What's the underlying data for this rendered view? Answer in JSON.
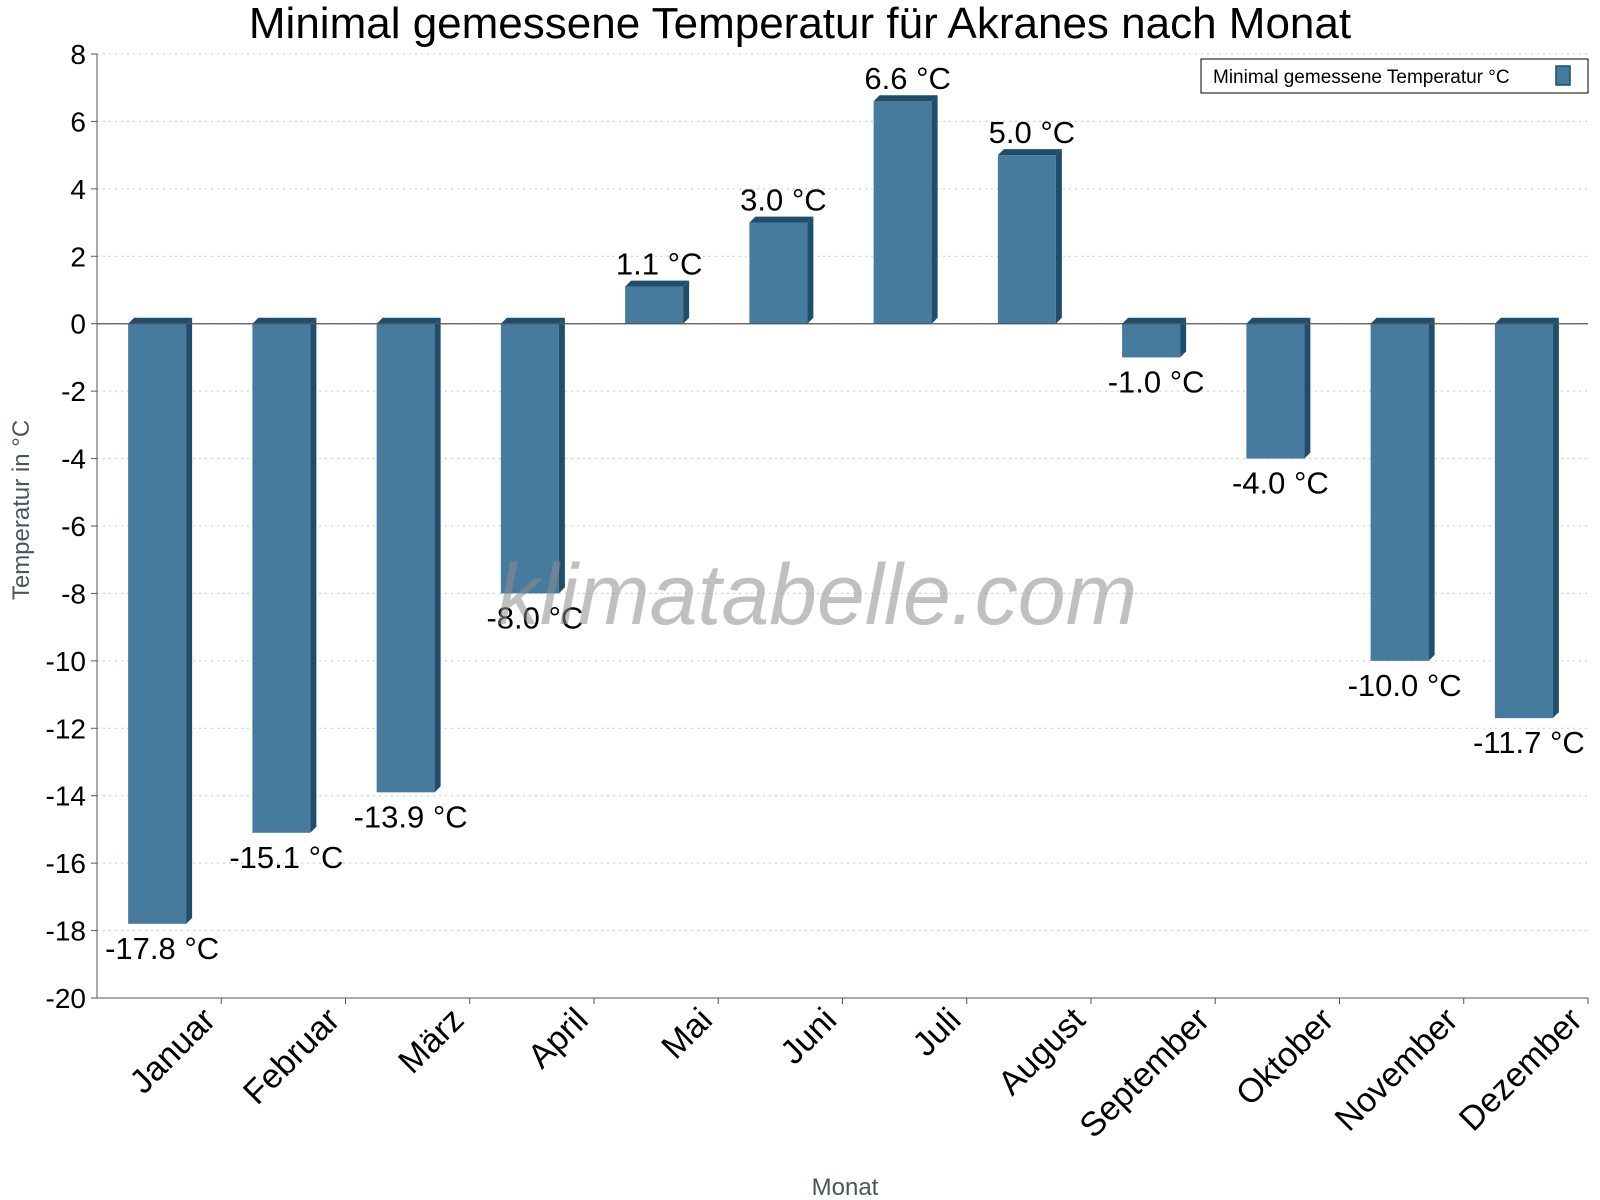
{
  "chart_data": {
    "type": "bar",
    "title": "Minimal gemessene Temperatur für Akranes nach Monat",
    "xlabel": "Monat",
    "ylabel": "Temperatur in °C",
    "ylim": [
      -20,
      8
    ],
    "yticks": [
      8,
      6,
      4,
      2,
      0,
      -2,
      -4,
      -6,
      -8,
      -10,
      -12,
      -14,
      -16,
      -18,
      -20
    ],
    "grid": true,
    "legend_position": "top-right",
    "categories": [
      "Januar",
      "Februar",
      "März",
      "April",
      "Mai",
      "Juni",
      "Juli",
      "August",
      "September",
      "Oktober",
      "November",
      "Dezember"
    ],
    "series": [
      {
        "name": "Minimal gemessene Temperatur °C",
        "color": "#467b9e",
        "values": [
          -17.8,
          -15.1,
          -13.9,
          -8.0,
          1.1,
          3.0,
          6.6,
          5.0,
          -1.0,
          -4.0,
          -10.0,
          -11.7
        ]
      }
    ],
    "data_labels": [
      "-17.8 °C",
      "-15.1 °C",
      "-13.9 °C",
      "-8.0 °C",
      "1.1 °C",
      "3.0 °C",
      "6.6 °C",
      "5.0 °C",
      "-1.0 °C",
      "-4.0 °C",
      "-10.0 °C",
      "-11.7 °C"
    ],
    "watermark": "klimatabelle.com"
  }
}
